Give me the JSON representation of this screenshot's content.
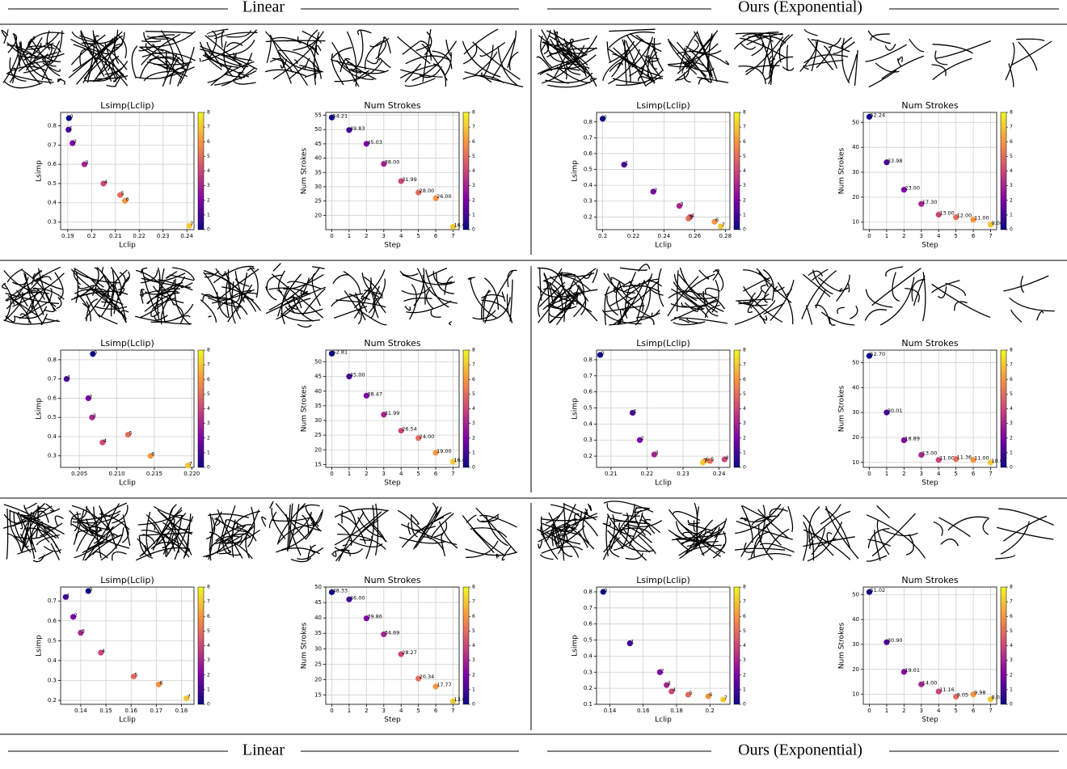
{
  "headers": {
    "left": "Linear",
    "right": "Ours (Exponential)"
  },
  "chart_data": [
    {
      "type": "scatter",
      "title": "Lsimp(Lclip)",
      "xlabel": "Lclip",
      "ylabel": "Lsimp",
      "x": [
        0.1905,
        0.1903,
        0.192,
        0.197,
        0.205,
        0.212,
        0.214,
        0.241
      ],
      "values": [
        0.84,
        0.78,
        0.71,
        0.6,
        0.5,
        0.44,
        0.41,
        0.28
      ],
      "color_values": [
        0,
        1,
        2,
        3,
        4,
        5,
        6,
        7
      ],
      "xlim": [
        0.187,
        0.243
      ],
      "xticks": [
        0.19,
        0.2,
        0.21,
        0.22,
        0.23,
        0.24
      ],
      "ylim": [
        0.26,
        0.87
      ],
      "yticks": [
        0.3,
        0.4,
        0.5,
        0.6,
        0.7,
        0.8
      ],
      "grid": true,
      "colormap": "plasma",
      "clim": [
        0,
        8
      ],
      "cticks": [
        0,
        1,
        2,
        3,
        4,
        5,
        6,
        7,
        8
      ]
    },
    {
      "type": "scatter",
      "title": "Num Strokes",
      "xlabel": "Step",
      "ylabel": "Num Strokes",
      "x": [
        0,
        1,
        2,
        3,
        4,
        5,
        6,
        7
      ],
      "values": [
        54.21,
        49.83,
        45.03,
        38.0,
        31.99,
        28.0,
        26.0,
        16.0
      ],
      "value_labels": [
        "54.21",
        "49.83",
        "45.03",
        "38.00",
        "31.99",
        "28.00",
        "26.00",
        "16.00"
      ],
      "color_values": [
        0,
        1,
        2,
        3,
        4,
        5,
        6,
        7
      ],
      "xlim": [
        -0.35,
        7.35
      ],
      "xticks": [
        0,
        1,
        2,
        3,
        4,
        5,
        6,
        7
      ],
      "ylim": [
        15,
        56
      ],
      "yticks": [
        20,
        25,
        30,
        35,
        40,
        45,
        50,
        55
      ],
      "grid": true,
      "colormap": "plasma",
      "clim": [
        0,
        8
      ],
      "cticks": [
        0,
        1,
        2,
        3,
        4,
        5,
        6,
        7,
        8
      ]
    },
    {
      "type": "scatter",
      "title": "Lsimp(Lclip)",
      "xlabel": "Lclip",
      "ylabel": "Lsimp",
      "x": [
        0.2,
        0.214,
        0.233,
        0.25,
        0.257,
        0.256,
        0.273,
        0.277
      ],
      "values": [
        0.82,
        0.53,
        0.36,
        0.27,
        0.2,
        0.19,
        0.17,
        0.14
      ],
      "color_values": [
        0,
        1,
        2,
        3,
        4,
        5,
        6,
        7
      ],
      "xlim": [
        0.196,
        0.283
      ],
      "xticks": [
        0.2,
        0.22,
        0.24,
        0.26,
        0.28
      ],
      "ylim": [
        0.12,
        0.86
      ],
      "yticks": [
        0.2,
        0.3,
        0.4,
        0.5,
        0.6,
        0.7,
        0.8
      ],
      "grid": true,
      "colormap": "plasma",
      "clim": [
        0,
        8
      ],
      "cticks": [
        0,
        1,
        2,
        3,
        4,
        5,
        6,
        7,
        8
      ]
    },
    {
      "type": "scatter",
      "title": "Num Strokes",
      "xlabel": "Step",
      "ylabel": "Num Strokes",
      "x": [
        0,
        1,
        2,
        3,
        4,
        5,
        6,
        7
      ],
      "values": [
        52.24,
        33.98,
        23.0,
        17.3,
        13.0,
        12.0,
        11.0,
        9.0
      ],
      "value_labels": [
        "52.24",
        "33.98",
        "23.00",
        "17.30",
        "13.00",
        "12.00",
        "11.00",
        "9.00"
      ],
      "color_values": [
        0,
        1,
        2,
        3,
        4,
        5,
        6,
        7
      ],
      "xlim": [
        -0.35,
        7.35
      ],
      "xticks": [
        0,
        1,
        2,
        3,
        4,
        5,
        6,
        7
      ],
      "ylim": [
        7,
        54
      ],
      "yticks": [
        10,
        20,
        30,
        40,
        50
      ],
      "grid": true,
      "colormap": "plasma",
      "clim": [
        0,
        8
      ],
      "cticks": [
        0,
        1,
        2,
        3,
        4,
        5,
        6,
        7,
        8
      ]
    },
    {
      "type": "scatter",
      "title": "Lsimp(Lclip)",
      "xlabel": "Lclip",
      "ylabel": "Lsimp",
      "x": [
        0.2068,
        0.2033,
        0.2062,
        0.2067,
        0.2081,
        0.2115,
        0.2145,
        0.2195
      ],
      "values": [
        0.83,
        0.7,
        0.6,
        0.5,
        0.37,
        0.41,
        0.3,
        0.25
      ],
      "color_values": [
        0,
        1,
        2,
        3,
        4,
        5,
        6,
        7
      ],
      "xlim": [
        0.2025,
        0.2203
      ],
      "xticks": [
        0.205,
        {
          "value": 0.21,
          "label": "0.210"
        },
        0.215,
        {
          "value": 0.22,
          "label": "0.220"
        }
      ],
      "ylim": [
        0.24,
        0.85
      ],
      "yticks": [
        0.3,
        0.4,
        0.5,
        0.6,
        0.7,
        0.8
      ],
      "grid": true,
      "colormap": "plasma",
      "clim": [
        0,
        8
      ],
      "cticks": [
        0,
        1,
        2,
        3,
        4,
        5,
        6,
        7,
        8
      ]
    },
    {
      "type": "scatter",
      "title": "Num Strokes",
      "xlabel": "Step",
      "ylabel": "Num Strokes",
      "x": [
        0,
        1,
        2,
        3,
        4,
        5,
        6,
        7
      ],
      "values": [
        52.81,
        45.0,
        38.47,
        31.99,
        26.54,
        24.0,
        19.0,
        16.0
      ],
      "value_labels": [
        "52.81",
        "45.00",
        "38.47",
        "31.99",
        "26.54",
        "24.00",
        "19.00",
        "16.00"
      ],
      "color_values": [
        0,
        1,
        2,
        3,
        4,
        5,
        6,
        7
      ],
      "xlim": [
        -0.35,
        7.35
      ],
      "xticks": [
        0,
        1,
        2,
        3,
        4,
        5,
        6,
        7
      ],
      "ylim": [
        14,
        54
      ],
      "yticks": [
        15,
        20,
        25,
        30,
        35,
        40,
        45,
        50
      ],
      "grid": true,
      "colormap": "plasma",
      "clim": [
        0,
        8
      ],
      "cticks": [
        0,
        1,
        2,
        3,
        4,
        5,
        6,
        7,
        8
      ]
    },
    {
      "type": "scatter",
      "title": "Lsimp(Lclip)",
      "xlabel": "Lclip",
      "ylabel": "Lsimp",
      "x": [
        0.207,
        0.216,
        0.218,
        0.222,
        0.2415,
        0.2375,
        0.236,
        0.2355
      ],
      "values": [
        0.83,
        0.47,
        0.3,
        0.21,
        0.18,
        0.17,
        0.17,
        0.16
      ],
      "color_values": [
        0,
        1,
        2,
        3,
        4,
        5,
        6,
        7
      ],
      "xlim": [
        0.206,
        0.243
      ],
      "xticks": [
        0.21,
        0.22,
        0.23,
        0.24
      ],
      "ylim": [
        0.13,
        0.86
      ],
      "yticks": [
        0.2,
        0.3,
        0.4,
        0.5,
        0.6,
        0.7,
        0.8
      ],
      "grid": true,
      "colormap": "plasma",
      "clim": [
        0,
        8
      ],
      "cticks": [
        0,
        1,
        2,
        3,
        4,
        5,
        6,
        7,
        8
      ]
    },
    {
      "type": "scatter",
      "title": "Num Strokes",
      "xlabel": "Step",
      "ylabel": "Num Strokes",
      "x": [
        0,
        1,
        2,
        3,
        4,
        5,
        6,
        7
      ],
      "values": [
        52.7,
        30.01,
        18.89,
        13.0,
        11.0,
        11.36,
        11.0,
        10.0
      ],
      "value_labels": [
        "52.70",
        "30.01",
        "18.89",
        "13.00",
        "11.00",
        "11.36",
        "11.00",
        "10.00"
      ],
      "color_values": [
        0,
        1,
        2,
        3,
        4,
        5,
        6,
        7
      ],
      "xlim": [
        -0.35,
        7.35
      ],
      "xticks": [
        0,
        1,
        2,
        3,
        4,
        5,
        6,
        7
      ],
      "ylim": [
        8,
        55
      ],
      "yticks": [
        10,
        20,
        30,
        40,
        50
      ],
      "grid": true,
      "colormap": "plasma",
      "clim": [
        0,
        8
      ],
      "cticks": [
        0,
        1,
        2,
        3,
        4,
        5,
        6,
        7,
        8
      ]
    },
    {
      "type": "scatter",
      "title": "Lsimp(Lclip)",
      "xlabel": "Lclip",
      "ylabel": "Lsimp",
      "x": [
        0.143,
        0.134,
        0.137,
        0.14,
        0.148,
        0.161,
        0.171,
        0.182
      ],
      "values": [
        0.75,
        0.72,
        0.62,
        0.54,
        0.44,
        0.32,
        0.28,
        0.21
      ],
      "color_values": [
        0,
        1,
        2,
        3,
        4,
        5,
        6,
        7
      ],
      "xlim": [
        0.132,
        0.185
      ],
      "xticks": [
        0.14,
        0.15,
        0.16,
        0.17,
        0.18
      ],
      "ylim": [
        0.18,
        0.77
      ],
      "yticks": [
        0.2,
        0.3,
        0.4,
        0.5,
        0.6,
        0.7
      ],
      "grid": true,
      "colormap": "plasma",
      "clim": [
        0,
        8
      ],
      "cticks": [
        0,
        1,
        2,
        3,
        4,
        5,
        6,
        7,
        8
      ]
    },
    {
      "type": "scatter",
      "title": "Num Strokes",
      "xlabel": "Step",
      "ylabel": "Num Strokes",
      "x": [
        0,
        1,
        2,
        3,
        4,
        5,
        6,
        7
      ],
      "values": [
        48.33,
        46.0,
        39.86,
        34.69,
        28.27,
        20.34,
        17.77,
        13.0
      ],
      "value_labels": [
        "48.33",
        "46.00",
        "39.86",
        "34.69",
        "28.27",
        "20.34",
        "17.77",
        "13.00"
      ],
      "color_values": [
        0,
        1,
        2,
        3,
        4,
        5,
        6,
        7
      ],
      "xlim": [
        -0.35,
        7.35
      ],
      "xticks": [
        0,
        1,
        2,
        3,
        4,
        5,
        6,
        7
      ],
      "ylim": [
        12,
        50
      ],
      "yticks": [
        15,
        20,
        25,
        30,
        35,
        40,
        45,
        50
      ],
      "grid": true,
      "colormap": "plasma",
      "clim": [
        0,
        8
      ],
      "cticks": [
        0,
        1,
        2,
        3,
        4,
        5,
        6,
        7,
        8
      ]
    },
    {
      "type": "scatter",
      "title": "Lsimp(Lclip)",
      "xlabel": "Lclip",
      "ylabel": "Lsimp",
      "x": [
        0.136,
        0.152,
        0.17,
        0.174,
        0.177,
        0.187,
        0.199,
        0.208
      ],
      "values": [
        0.8,
        0.48,
        0.3,
        0.22,
        0.18,
        0.16,
        0.15,
        0.13
      ],
      "color_values": [
        0,
        1,
        2,
        3,
        4,
        5,
        6,
        7
      ],
      "xlim": [
        0.132,
        0.212
      ],
      "xticks": [
        0.14,
        0.16,
        0.18,
        0.2
      ],
      "ylim": [
        0.1,
        0.83
      ],
      "yticks": [
        0.1,
        0.2,
        0.3,
        0.4,
        0.5,
        0.6,
        0.7,
        0.8
      ],
      "grid": true,
      "colormap": "plasma",
      "clim": [
        0,
        8
      ],
      "cticks": [
        0,
        1,
        2,
        3,
        4,
        5,
        6,
        7,
        8
      ]
    },
    {
      "type": "scatter",
      "title": "Num Strokes",
      "xlabel": "Step",
      "ylabel": "Num Strokes",
      "x": [
        0,
        1,
        2,
        3,
        4,
        5,
        6,
        7
      ],
      "values": [
        51.02,
        30.9,
        19.01,
        14.0,
        11.16,
        9.05,
        9.98,
        8.03
      ],
      "value_labels": [
        "51.02",
        "30.90",
        "19.01",
        "14.00",
        "11.16",
        "9.05",
        "9.98",
        "8.03"
      ],
      "color_values": [
        0,
        1,
        2,
        3,
        4,
        5,
        6,
        7
      ],
      "xlim": [
        -0.35,
        7.35
      ],
      "xticks": [
        0,
        1,
        2,
        3,
        4,
        5,
        6,
        7
      ],
      "ylim": [
        6,
        53
      ],
      "yticks": [
        10,
        20,
        30,
        40,
        50
      ],
      "grid": true,
      "colormap": "plasma",
      "clim": [
        0,
        8
      ],
      "cticks": [
        0,
        1,
        2,
        3,
        4,
        5,
        6,
        7,
        8
      ]
    }
  ]
}
